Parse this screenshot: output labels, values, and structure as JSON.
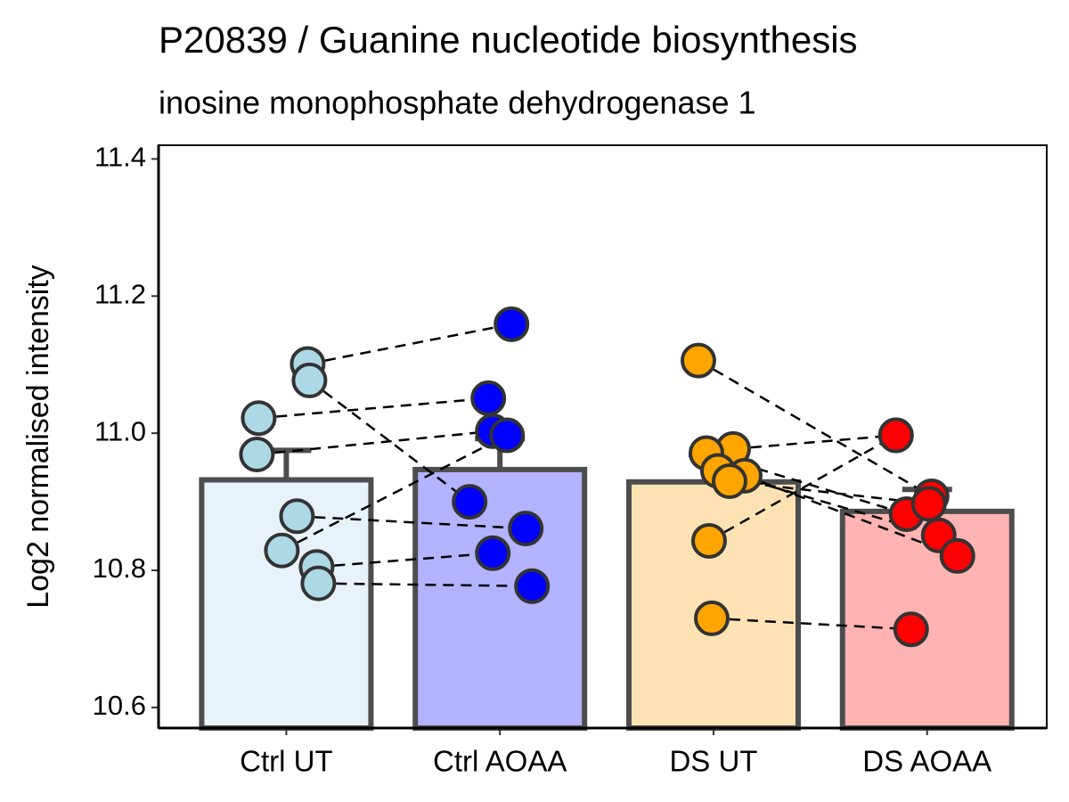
{
  "chart_data": {
    "type": "bar",
    "title": "P20839 / Guanine nucleotide biosynthesis",
    "subtitle": "inosine monophosphate dehydrogenase 1",
    "y_label": "Log2 normalised intensity",
    "categories": [
      "Ctrl UT",
      "Ctrl AOAA",
      "DS UT",
      "DS AOAA"
    ],
    "values": [
      10.932,
      10.947,
      10.929,
      10.886
    ],
    "errors": [
      0.043,
      0.045,
      0.04,
      0.032
    ],
    "colors": [
      "#e8f3f9",
      "#b3b3ff",
      "#fde3b3",
      "#ffb3b3"
    ],
    "point_colors": [
      "#add8e6",
      "#0000ff",
      "#ffa500",
      "#ff0000"
    ],
    "points": [
      [
        11.101,
        11.022,
        10.969,
        11.077,
        10.879,
        10.829,
        10.805,
        10.781
      ],
      [
        11.159,
        11.051,
        11.003,
        10.9,
        10.861,
        10.997,
        10.825,
        10.777
      ],
      [
        11.106,
        10.843,
        10.73,
        10.977,
        10.971,
        10.945,
        10.938,
        10.93
      ],
      [
        10.908,
        10.997,
        10.714,
        10.997,
        10.882,
        10.851,
        10.821,
        10.897
      ]
    ],
    "ylim": [
      10.57,
      11.42
    ],
    "yticks": [
      10.6,
      10.8,
      11.0,
      11.2,
      11.4
    ]
  }
}
